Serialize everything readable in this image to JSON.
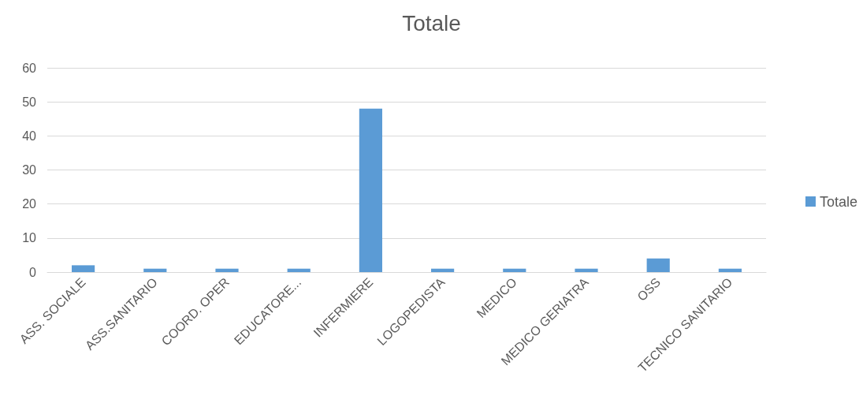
{
  "chart_data": {
    "type": "bar",
    "title": "Totale",
    "categories": [
      "ASS. SOCIALE",
      "ASS.SANITARIO",
      "COORD. OPER",
      "EDUCATORE...",
      "INFERMIERE",
      "LOGOPEDISTA",
      "MEDICO",
      "MEDICO GERIATRA",
      "OSS",
      "TECNICO SANITARIO"
    ],
    "series": [
      {
        "name": "Totale",
        "color": "#5b9bd5",
        "values": [
          2,
          1,
          1,
          1,
          48,
          1,
          1,
          1,
          4,
          1
        ]
      }
    ],
    "ylim": [
      0,
      60
    ],
    "yticks": [
      0,
      10,
      20,
      30,
      40,
      50,
      60
    ],
    "grid": "y",
    "legend": "right"
  }
}
